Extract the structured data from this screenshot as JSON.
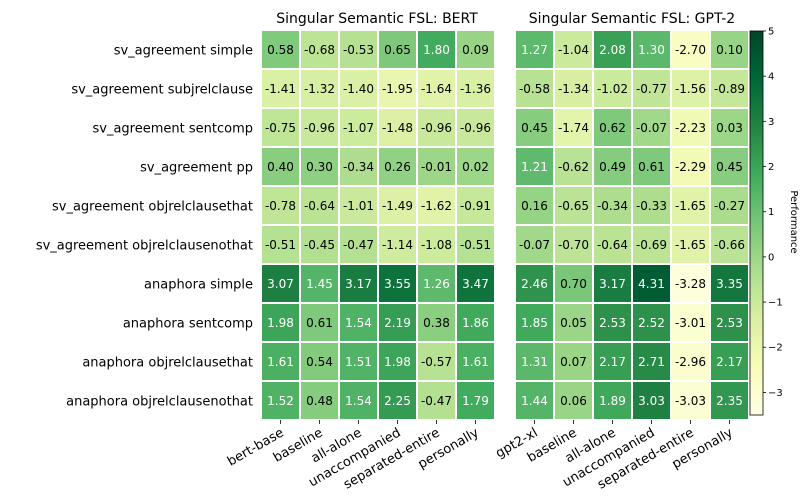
{
  "chart_data": [
    {
      "type": "heatmap",
      "title": "Singular Semantic FSL: BERT",
      "rows": [
        "sv_agreement simple",
        "sv_agreement subjrelclause",
        "sv_agreement sentcomp",
        "sv_agreement pp",
        "sv_agreement objrelclausethat",
        "sv_agreement objrelclausenothat",
        "anaphora simple",
        "anaphora sentcomp",
        "anaphora objrelclausethat",
        "anaphora objrelclausenothat"
      ],
      "columns": [
        "bert-base",
        "baseline",
        "all-alone",
        "unaccompanied",
        "separated-entire",
        "personally"
      ],
      "values": [
        [
          "0.58",
          "-0.68",
          "-0.53",
          "0.65",
          "1.80",
          "0.09"
        ],
        [
          "-1.41",
          "-1.32",
          "-1.40",
          "-1.95",
          "-1.64",
          "-1.36"
        ],
        [
          "-0.75",
          "-0.96",
          "-1.07",
          "-1.48",
          "-0.96",
          "-0.96"
        ],
        [
          "0.40",
          "0.30",
          "-0.34",
          "0.26",
          "-0.01",
          "0.02"
        ],
        [
          "-0.78",
          "-0.64",
          "-1.01",
          "-1.49",
          "-1.62",
          "-0.91"
        ],
        [
          "-0.51",
          "-0.45",
          "-0.47",
          "-1.14",
          "-1.08",
          "-0.51"
        ],
        [
          "3.07",
          "1.45",
          "3.17",
          "3.55",
          "1.26",
          "3.47"
        ],
        [
          "1.98",
          "0.61",
          "1.54",
          "2.19",
          "0.38",
          "1.86"
        ],
        [
          "1.61",
          "0.54",
          "1.51",
          "1.98",
          "-0.57",
          "1.61"
        ],
        [
          "1.52",
          "0.48",
          "1.54",
          "2.25",
          "-0.47",
          "1.79"
        ]
      ]
    },
    {
      "type": "heatmap",
      "title": "Singular Semantic FSL: GPT-2",
      "rows": [
        "sv_agreement simple",
        "sv_agreement subjrelclause",
        "sv_agreement sentcomp",
        "sv_agreement pp",
        "sv_agreement objrelclausethat",
        "sv_agreement objrelclausenothat",
        "anaphora simple",
        "anaphora sentcomp",
        "anaphora objrelclausethat",
        "anaphora objrelclausenothat"
      ],
      "columns": [
        "gpt2-xl",
        "baseline",
        "all-alone",
        "unaccompanied",
        "separated-entire",
        "personally"
      ],
      "values": [
        [
          "1.27",
          "-1.04",
          "2.08",
          "1.30",
          "-2.70",
          "0.10"
        ],
        [
          "-0.58",
          "-1.34",
          "-1.02",
          "-0.77",
          "-1.56",
          "-0.89"
        ],
        [
          "0.45",
          "-1.74",
          "0.62",
          "-0.07",
          "-2.23",
          "0.03"
        ],
        [
          "1.21",
          "-0.62",
          "0.49",
          "0.61",
          "-2.29",
          "0.45"
        ],
        [
          "0.16",
          "-0.65",
          "-0.34",
          "-0.33",
          "-1.65",
          "-0.27"
        ],
        [
          "-0.07",
          "-0.70",
          "-0.64",
          "-0.69",
          "-1.65",
          "-0.66"
        ],
        [
          "2.46",
          "0.70",
          "3.17",
          "4.31",
          "-3.28",
          "3.35"
        ],
        [
          "1.85",
          "0.05",
          "2.53",
          "2.52",
          "-3.01",
          "2.53"
        ],
        [
          "1.31",
          "0.07",
          "2.17",
          "2.71",
          "-2.96",
          "2.17"
        ],
        [
          "1.44",
          "0.06",
          "1.89",
          "3.03",
          "-3.03",
          "2.35"
        ]
      ]
    }
  ],
  "colorbar": {
    "label": "Performance",
    "range": [
      -3.5,
      5
    ],
    "ticks": [
      "5",
      "4",
      "3",
      "2",
      "1",
      "0",
      "−1",
      "−2",
      "−3"
    ],
    "tick_values": [
      5,
      4,
      3,
      2,
      1,
      0,
      -1,
      -2,
      -3
    ],
    "colormap": "YlGn",
    "colors": [
      "#ffffe5",
      "#f7fcb9",
      "#d9f0a3",
      "#addd8e",
      "#78c679",
      "#41ab5d",
      "#238443",
      "#006837",
      "#004529"
    ]
  }
}
